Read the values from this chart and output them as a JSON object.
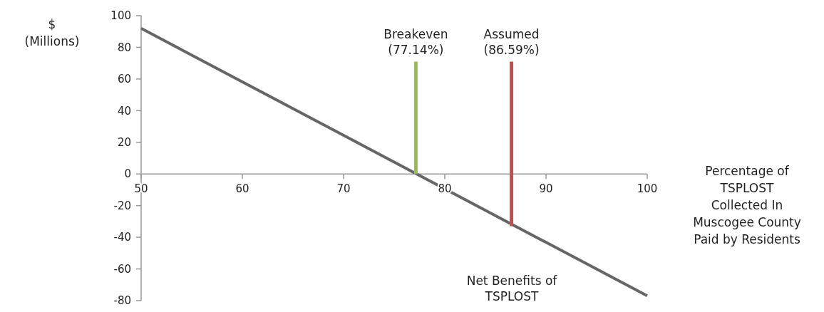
{
  "chart_data": {
    "type": "line",
    "xlabel": "Percentage of\nTSPLOST\nCollected In\nMuscogee County\nPaid by Residents",
    "ylabel": "$\n(Millions)",
    "xlim": [
      50,
      100
    ],
    "xticks": [
      50,
      60,
      70,
      80,
      90,
      100
    ],
    "ylim": [
      -80,
      100
    ],
    "yticks": [
      -80,
      -60,
      -40,
      -20,
      0,
      20,
      40,
      60,
      80,
      100
    ],
    "grid": false,
    "marker": "none",
    "line_style": "solid",
    "series": [
      {
        "name": "Net Benefits of\nTSPLOST",
        "color": "#666666",
        "x": [
          50,
          100
        ],
        "values": [
          92,
          -77
        ]
      },
      {
        "name": "Breakeven\n(77.14%)",
        "color": "#9bbb59",
        "x": [
          77.14,
          77.14
        ],
        "values": [
          0,
          71
        ]
      },
      {
        "name": "Assumed\n(86.59%)",
        "color": "#c0504d",
        "x": [
          86.59,
          86.59
        ],
        "values": [
          -33,
          71
        ]
      }
    ]
  }
}
